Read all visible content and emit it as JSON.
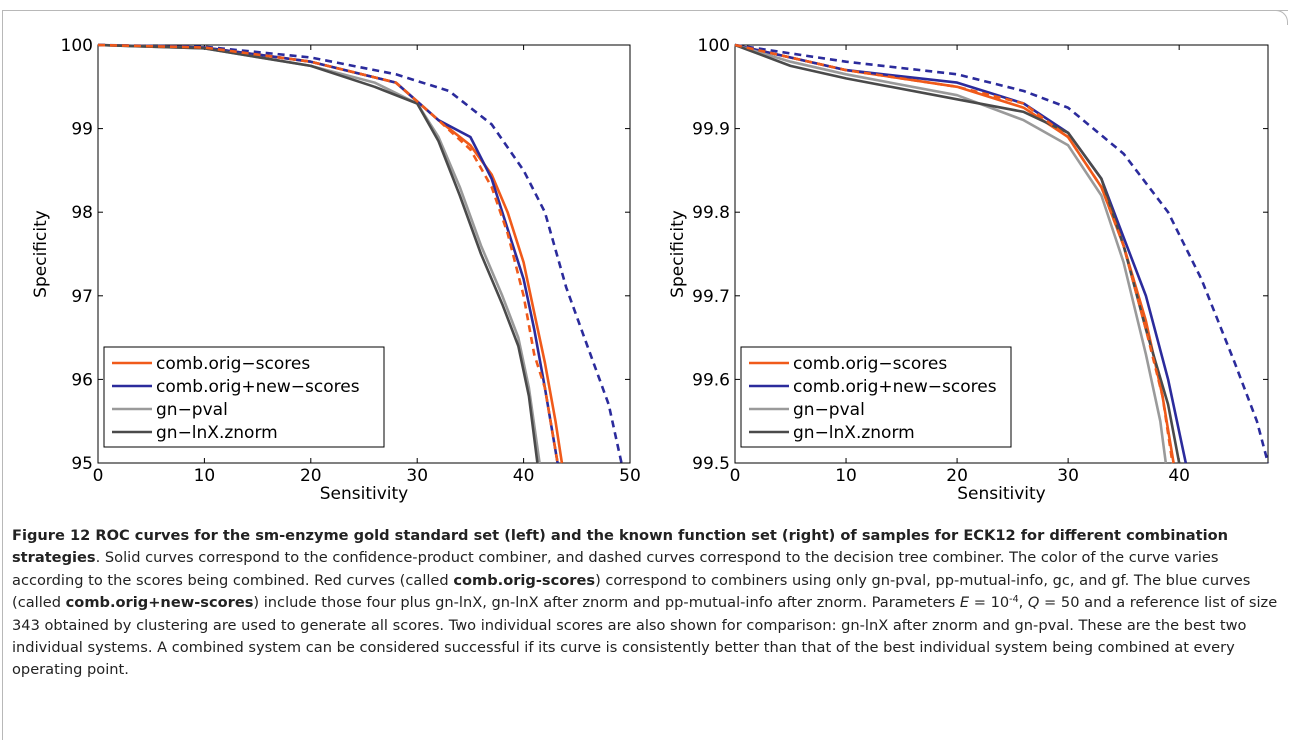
{
  "colors": {
    "orange": "#f05a1a",
    "blue": "#2b2b9c",
    "light_gray": "#9a9a9a",
    "dark_gray": "#4a4a4a"
  },
  "chart_data": [
    {
      "type": "line",
      "title": "",
      "xlabel": "Sensitivity",
      "ylabel": "Specificity",
      "xlim": [
        0,
        50
      ],
      "ylim": [
        95,
        100
      ],
      "xticks": [
        "0",
        "10",
        "20",
        "30",
        "40",
        "50"
      ],
      "yticks": [
        "95",
        "96",
        "97",
        "98",
        "99",
        "100"
      ],
      "legend_position": "bottom-left",
      "legend": [
        "comb.orig−scores",
        "comb.orig+new−scores",
        "gn−pval",
        "gn−lnX.znorm"
      ],
      "series": [
        {
          "name": "comb.orig−scores",
          "color_key": "orange",
          "style": "solid",
          "points": [
            [
              0,
              100
            ],
            [
              10,
              99.97
            ],
            [
              20,
              99.8
            ],
            [
              28,
              99.55
            ],
            [
              32,
              99.1
            ],
            [
              35,
              98.8
            ],
            [
              37,
              98.45
            ],
            [
              38.5,
              98.0
            ],
            [
              40,
              97.4
            ],
            [
              41,
              96.8
            ],
            [
              42,
              96.2
            ],
            [
              43,
              95.5
            ],
            [
              43.6,
              95
            ]
          ]
        },
        {
          "name": "comb.orig+new−scores",
          "color_key": "blue",
          "style": "solid",
          "points": [
            [
              0,
              100
            ],
            [
              10,
              99.97
            ],
            [
              20,
              99.8
            ],
            [
              28,
              99.55
            ],
            [
              32,
              99.1
            ],
            [
              35,
              98.9
            ],
            [
              37,
              98.4
            ],
            [
              38.5,
              97.8
            ],
            [
              40,
              97.2
            ],
            [
              41,
              96.6
            ],
            [
              42,
              95.9
            ],
            [
              43.2,
              95
            ]
          ]
        },
        {
          "name": "gn−pval",
          "color_key": "light_gray",
          "style": "solid",
          "points": [
            [
              0,
              100
            ],
            [
              10,
              99.96
            ],
            [
              20,
              99.75
            ],
            [
              26,
              99.55
            ],
            [
              30,
              99.3
            ],
            [
              32,
              98.9
            ],
            [
              34,
              98.3
            ],
            [
              36,
              97.6
            ],
            [
              38,
              97.0
            ],
            [
              39.5,
              96.5
            ],
            [
              40.5,
              95.9
            ],
            [
              41.5,
              95
            ]
          ]
        },
        {
          "name": "gn−lnX.znorm",
          "color_key": "dark_gray",
          "style": "solid",
          "points": [
            [
              0,
              100
            ],
            [
              10,
              99.96
            ],
            [
              20,
              99.75
            ],
            [
              26,
              99.5
            ],
            [
              30,
              99.3
            ],
            [
              32,
              98.85
            ],
            [
              34,
              98.2
            ],
            [
              36,
              97.5
            ],
            [
              38,
              96.9
            ],
            [
              39.5,
              96.4
            ],
            [
              40.5,
              95.8
            ],
            [
              41.3,
              95
            ]
          ]
        },
        {
          "style": "dashed",
          "color_key": "blue",
          "points": [
            [
              0,
              100
            ],
            [
              10,
              99.98
            ],
            [
              20,
              99.85
            ],
            [
              28,
              99.65
            ],
            [
              33,
              99.45
            ],
            [
              37,
              99.05
            ],
            [
              40,
              98.5
            ],
            [
              42,
              98.0
            ],
            [
              44,
              97.1
            ],
            [
              46,
              96.4
            ],
            [
              48,
              95.7
            ],
            [
              49.2,
              95
            ]
          ]
        },
        {
          "style": "dashed",
          "color_key": "orange",
          "points": [
            [
              0,
              100
            ],
            [
              10,
              99.97
            ],
            [
              20,
              99.8
            ],
            [
              28,
              99.55
            ],
            [
              32,
              99.1
            ],
            [
              35,
              98.75
            ],
            [
              37,
              98.3
            ],
            [
              38.5,
              97.75
            ],
            [
              40,
              97.0
            ],
            [
              41,
              96.3
            ],
            [
              42,
              95.9
            ],
            [
              43.2,
              95
            ]
          ]
        }
      ]
    },
    {
      "type": "line",
      "title": "",
      "xlabel": "Sensitivity",
      "ylabel": "Specificity",
      "xlim": [
        0,
        48
      ],
      "ylim": [
        99.5,
        100
      ],
      "xticks": [
        "0",
        "10",
        "20",
        "30",
        "40"
      ],
      "yticks": [
        "99.5",
        "99.6",
        "99.7",
        "99.8",
        "99.9",
        "100"
      ],
      "legend_position": "bottom-left",
      "legend": [
        "comb.orig−scores",
        "comb.orig+new−scores",
        "gn−pval",
        "gn−lnX.znorm"
      ],
      "series": [
        {
          "name": "comb.orig−scores",
          "color_key": "orange",
          "style": "solid",
          "points": [
            [
              0,
              100
            ],
            [
              5,
              99.985
            ],
            [
              10,
              99.97
            ],
            [
              20,
              99.95
            ],
            [
              26,
              99.925
            ],
            [
              30,
              99.89
            ],
            [
              33,
              99.83
            ],
            [
              35,
              99.76
            ],
            [
              37,
              99.67
            ],
            [
              38.5,
              99.58
            ],
            [
              39.5,
              99.5
            ]
          ]
        },
        {
          "name": "comb.orig+new−scores",
          "color_key": "blue",
          "style": "solid",
          "points": [
            [
              0,
              100
            ],
            [
              5,
              99.985
            ],
            [
              10,
              99.97
            ],
            [
              20,
              99.955
            ],
            [
              26,
              99.93
            ],
            [
              30,
              99.895
            ],
            [
              33,
              99.84
            ],
            [
              35,
              99.77
            ],
            [
              37,
              99.7
            ],
            [
              39,
              99.6
            ],
            [
              40.6,
              99.5
            ]
          ]
        },
        {
          "name": "gn−pval",
          "color_key": "light_gray",
          "style": "solid",
          "points": [
            [
              0,
              100
            ],
            [
              5,
              99.98
            ],
            [
              10,
              99.965
            ],
            [
              20,
              99.94
            ],
            [
              26,
              99.91
            ],
            [
              30,
              99.88
            ],
            [
              33,
              99.82
            ],
            [
              35,
              99.74
            ],
            [
              37,
              99.63
            ],
            [
              38.3,
              99.55
            ],
            [
              38.8,
              99.5
            ]
          ]
        },
        {
          "name": "gn−lnX.znorm",
          "color_key": "dark_gray",
          "style": "solid",
          "points": [
            [
              0,
              100
            ],
            [
              5,
              99.975
            ],
            [
              10,
              99.96
            ],
            [
              20,
              99.935
            ],
            [
              26,
              99.92
            ],
            [
              30,
              99.895
            ],
            [
              33,
              99.84
            ],
            [
              35,
              99.76
            ],
            [
              37,
              99.66
            ],
            [
              39,
              99.57
            ],
            [
              40,
              99.5
            ]
          ]
        },
        {
          "style": "dashed",
          "color_key": "blue",
          "points": [
            [
              0,
              100
            ],
            [
              5,
              99.99
            ],
            [
              10,
              99.98
            ],
            [
              20,
              99.965
            ],
            [
              26,
              99.945
            ],
            [
              30,
              99.925
            ],
            [
              35,
              99.87
            ],
            [
              39,
              99.8
            ],
            [
              42,
              99.72
            ],
            [
              45,
              99.62
            ],
            [
              47,
              99.55
            ],
            [
              48,
              99.5
            ]
          ]
        },
        {
          "style": "dashed",
          "color_key": "orange",
          "points": [
            [
              0,
              100
            ],
            [
              5,
              99.985
            ],
            [
              10,
              99.97
            ],
            [
              20,
              99.95
            ],
            [
              26,
              99.93
            ],
            [
              30,
              99.89
            ],
            [
              33,
              99.83
            ],
            [
              35,
              99.76
            ],
            [
              37,
              99.66
            ],
            [
              38.5,
              99.58
            ],
            [
              39.4,
              99.5
            ]
          ]
        }
      ]
    }
  ],
  "caption": {
    "title": "Figure 12 ROC curves for the sm-enzyme gold standard set (left) and the known function set (right) of samples for ECK12 for different combination strategies",
    "text_1": ". Solid curves correspond to the confidence-product combiner, and dashed curves correspond to the decision tree combiner. The color of the curve varies according to the scores being combined. Red curves (called ",
    "bold_1": "comb.orig-scores",
    "text_2": ") correspond to combiners using only gn-pval, pp-mutual-info, gc, and gf. The blue curves (called ",
    "bold_2": "comb.orig+new-scores",
    "text_3": ") include those four plus gn-lnX, gn-lnX after znorm and pp-mutual-info after znorm. Parameters ",
    "param_e": "E",
    "eq_e": " = 10",
    "exp_e": "-4",
    "sep": ", ",
    "param_q": "Q",
    "eq_q": " = 50",
    "text_4": " and a reference list of size 343 obtained by clustering are used to generate all scores. Two individual scores are also shown for comparison: gn-lnX after znorm and gn-pval. These are the best two individual systems. A combined system can be considered successful if its curve is consistently better than that of the best individual system being combined at every operating point."
  }
}
